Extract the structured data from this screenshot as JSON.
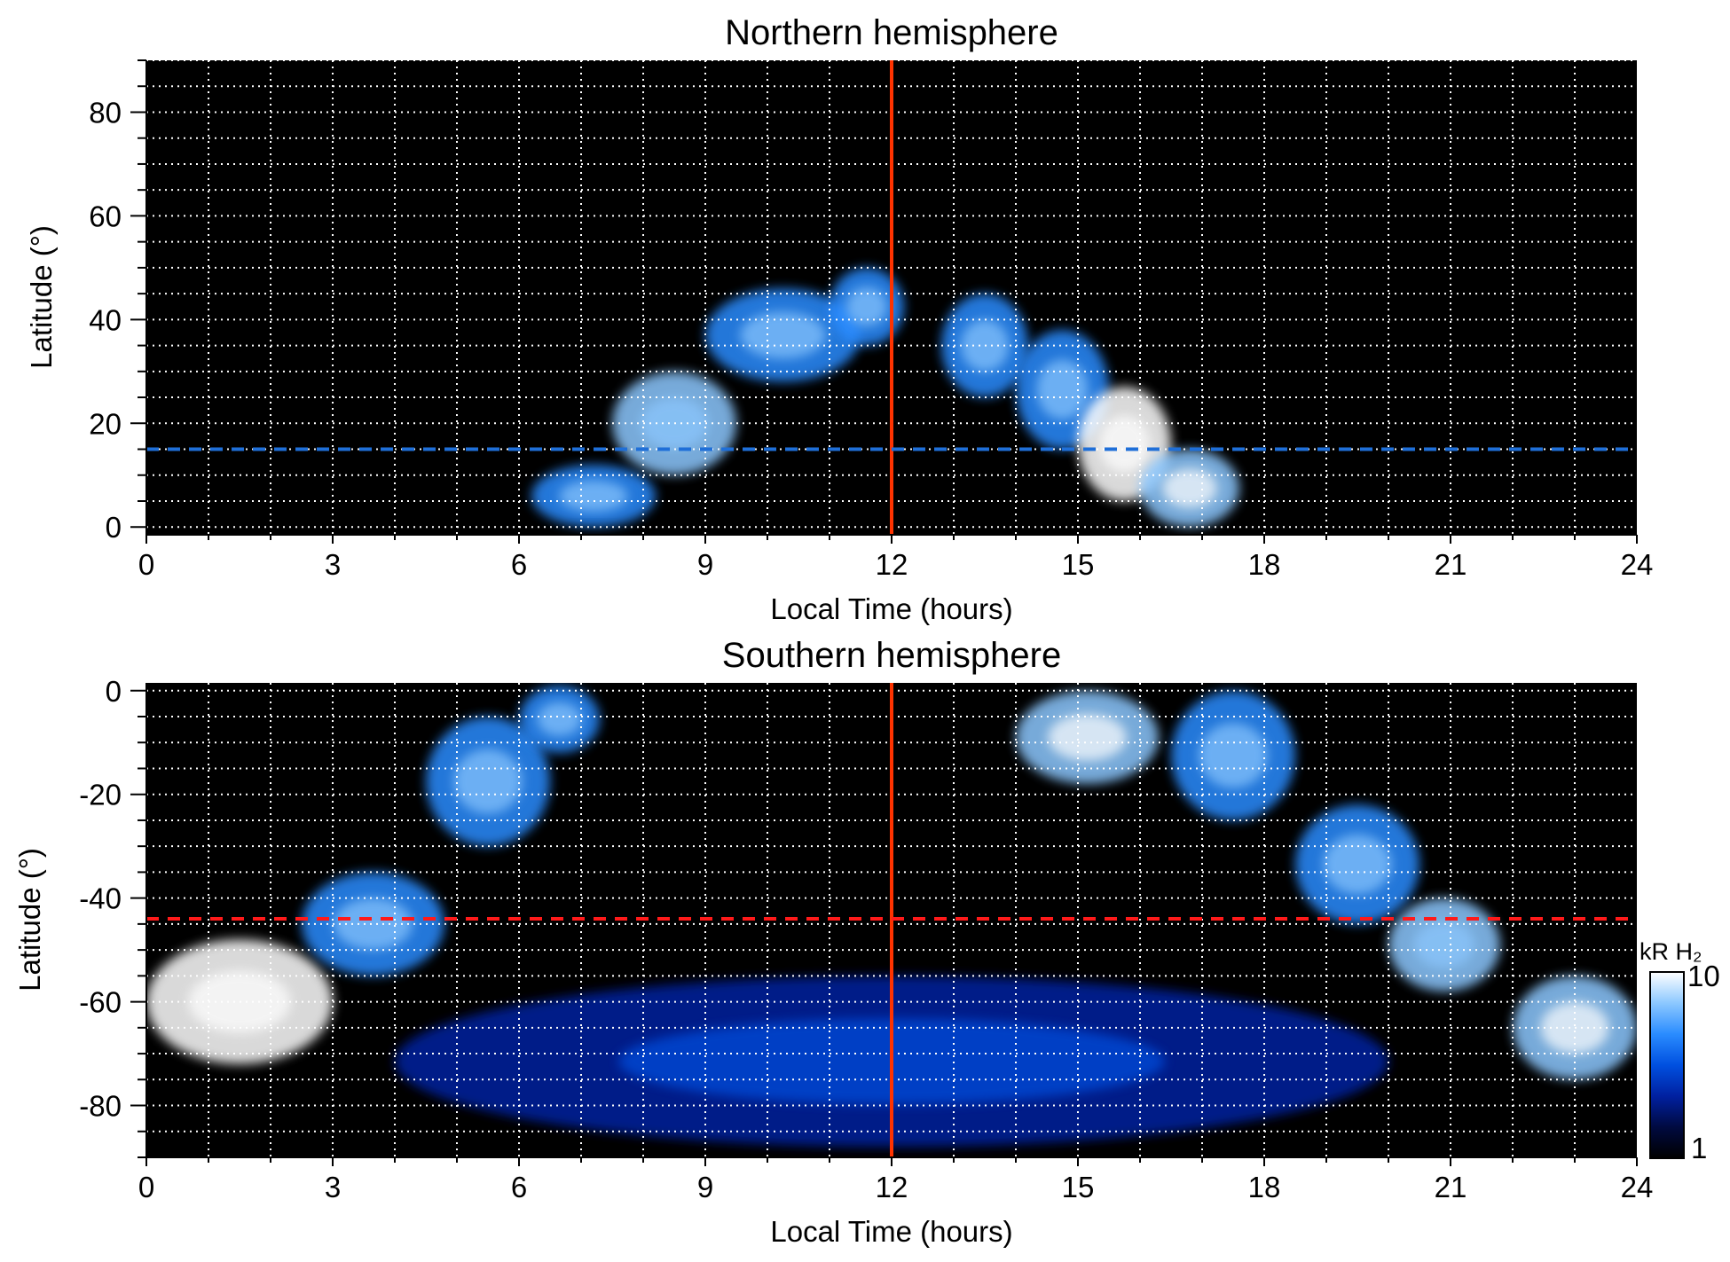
{
  "chart_data": [
    {
      "type": "heatmap",
      "title": "Northern hemisphere",
      "xlabel": "Local Time (hours)",
      "ylabel": "Latitude (°)",
      "xlim": [
        0,
        24
      ],
      "ylim": [
        -1.5,
        90
      ],
      "xticks": [
        "0",
        "3",
        "6",
        "9",
        "12",
        "15",
        "18",
        "21",
        "24"
      ],
      "yticks": [
        "0",
        "20",
        "40",
        "60",
        "80"
      ],
      "ytick_values": [
        0,
        20,
        40,
        60,
        80
      ],
      "grid": true,
      "grid_style": "dotted white",
      "background_color": "#000000",
      "reference_lines": [
        {
          "orientation": "vertical",
          "value": 12,
          "color": "#ff3300",
          "style": "solid"
        },
        {
          "orientation": "horizontal",
          "value": 15,
          "color": "#1f6fd8",
          "style": "dashed"
        }
      ],
      "emission_bands": [
        {
          "lt_start": 6.2,
          "lt_end": 8.2,
          "lat_min": 0,
          "lat_max": 12,
          "level": 0.6
        },
        {
          "lt_start": 7.5,
          "lt_end": 9.5,
          "lat_min": 10,
          "lat_max": 30,
          "level": 0.75
        },
        {
          "lt_start": 9.0,
          "lt_end": 11.5,
          "lat_min": 28,
          "lat_max": 46,
          "level": 0.7
        },
        {
          "lt_start": 11.0,
          "lt_end": 12.2,
          "lat_min": 35,
          "lat_max": 50,
          "level": 0.65
        },
        {
          "lt_start": 12.8,
          "lt_end": 14.2,
          "lat_min": 25,
          "lat_max": 45,
          "level": 0.6
        },
        {
          "lt_start": 14.0,
          "lt_end": 15.5,
          "lat_min": 15,
          "lat_max": 38,
          "level": 0.7
        },
        {
          "lt_start": 15.0,
          "lt_end": 16.5,
          "lat_min": 5,
          "lat_max": 27,
          "level": 0.95
        },
        {
          "lt_start": 16.0,
          "lt_end": 17.6,
          "lat_min": 0,
          "lat_max": 15,
          "level": 0.8
        }
      ]
    },
    {
      "type": "heatmap",
      "title": "Southern hemisphere",
      "xlabel": "Local Time (hours)",
      "ylabel": "Latitude (°)",
      "xlim": [
        0,
        24
      ],
      "ylim": [
        -90,
        1.5
      ],
      "xticks": [
        "0",
        "3",
        "6",
        "9",
        "12",
        "15",
        "18",
        "21",
        "24"
      ],
      "yticks": [
        "0",
        "-20",
        "-40",
        "-60",
        "-80"
      ],
      "ytick_values": [
        0,
        -20,
        -40,
        -60,
        -80
      ],
      "grid": true,
      "grid_style": "dotted white",
      "background_color": "#000000",
      "reference_lines": [
        {
          "orientation": "vertical",
          "value": 12,
          "color": "#ff3300",
          "style": "solid"
        },
        {
          "orientation": "horizontal",
          "value": -44,
          "color": "#ff1a1a",
          "style": "dashed"
        }
      ],
      "emission_bands": [
        {
          "lt_start": 0.0,
          "lt_end": 3.0,
          "lat_min": -72,
          "lat_max": -48,
          "level": 0.95
        },
        {
          "lt_start": 2.5,
          "lt_end": 4.8,
          "lat_min": -55,
          "lat_max": -35,
          "level": 0.7
        },
        {
          "lt_start": 4.5,
          "lt_end": 6.5,
          "lat_min": -30,
          "lat_max": -5,
          "level": 0.65
        },
        {
          "lt_start": 6.0,
          "lt_end": 7.3,
          "lat_min": -12,
          "lat_max": 1,
          "level": 0.6
        },
        {
          "lt_start": 14.0,
          "lt_end": 16.3,
          "lat_min": -18,
          "lat_max": 0,
          "level": 0.9
        },
        {
          "lt_start": 16.5,
          "lt_end": 18.5,
          "lat_min": -25,
          "lat_max": 0,
          "level": 0.7
        },
        {
          "lt_start": 18.5,
          "lt_end": 20.5,
          "lat_min": -45,
          "lat_max": -22,
          "level": 0.7
        },
        {
          "lt_start": 20.0,
          "lt_end": 21.8,
          "lat_min": -58,
          "lat_max": -40,
          "level": 0.75
        },
        {
          "lt_start": 22.0,
          "lt_end": 24.0,
          "lat_min": -75,
          "lat_max": -55,
          "level": 0.8
        },
        {
          "lt_start": 4.0,
          "lt_end": 20.0,
          "lat_min": -88,
          "lat_max": -55,
          "level": 0.3
        }
      ]
    }
  ],
  "colorbar": {
    "label": "kR H₂",
    "min_label": "1",
    "max_label": "10",
    "scale": "log",
    "colors": [
      "#000000",
      "#000a40",
      "#0020a0",
      "#0050e0",
      "#2a8cff",
      "#8cc8ff",
      "#ffffff"
    ]
  }
}
